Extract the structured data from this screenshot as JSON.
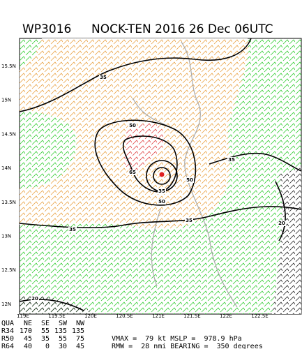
{
  "title": {
    "storm_id": "WP3016",
    "description": "NOCK-TEN 2016 26 Dec 06UTC"
  },
  "lat_labels": [
    "15.5N",
    "15N",
    "14.5N",
    "14N",
    "13.5N",
    "13N",
    "12.5N",
    "12N"
  ],
  "lon_labels": [
    "119E",
    "119.5E",
    "120E",
    "120.5E",
    "121E",
    "121.5E",
    "122E",
    "122.5E"
  ],
  "contour_labels": [
    "35",
    "50",
    "65",
    "35",
    "50",
    "50",
    "35",
    "35",
    "35",
    "20",
    "20"
  ],
  "table": {
    "header": [
      "QUA",
      "NE",
      "SE",
      "SW",
      "NW"
    ],
    "rows": [
      [
        "R34",
        "170",
        "55",
        "135",
        "135"
      ],
      [
        "R50",
        "45",
        "35",
        "55",
        "75"
      ],
      [
        "R64",
        "40",
        "0",
        "30",
        "45"
      ]
    ]
  },
  "stats": {
    "vmax_line": "VMAX =  79 kt MSLP =  978.9 hPa",
    "rmw_line": "RMW =  28 nmi BEARING =  350 degrees"
  }
}
